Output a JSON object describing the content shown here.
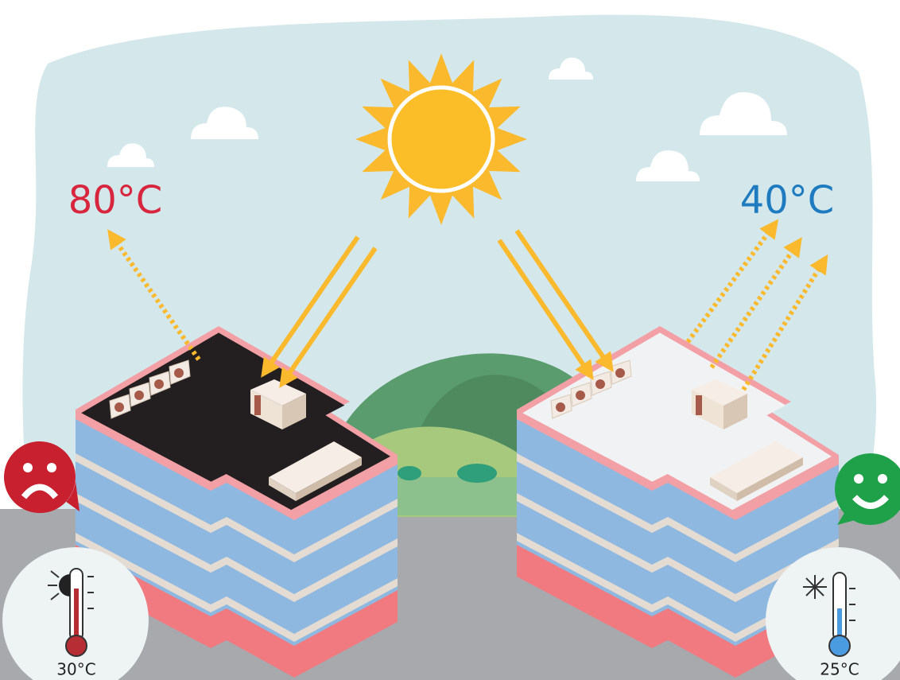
{
  "buildings": [
    {
      "roof_temperature": "80°C",
      "indoor_temperature": "30°C"
    },
    {
      "roof_temperature": "40°C",
      "indoor_temperature": "25°C"
    }
  ]
}
